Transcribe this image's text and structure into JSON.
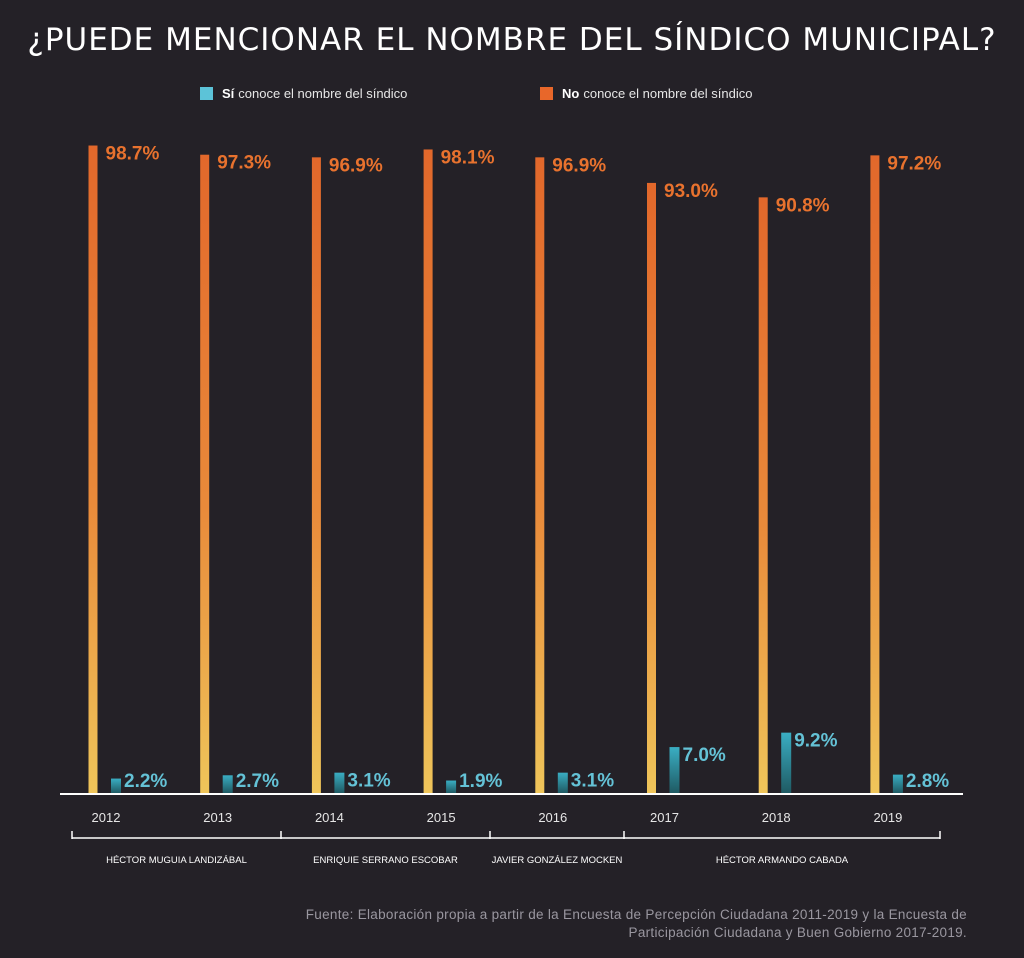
{
  "colors": {
    "background": "#242127",
    "no_top": "#e2682b",
    "no_bottom": "#efc55a",
    "si_top": "#3aaec3",
    "si_bottom": "#1f5a63",
    "si_label": "#64c2d6",
    "no_label": "#e8722e",
    "axis": "#ffffff"
  },
  "legend": {
    "si": {
      "bold": "Sí",
      "text": "conoce el nombre del síndico",
      "color": "#5cc3d8"
    },
    "no": {
      "bold": "No",
      "text": "conoce el nombre del síndico",
      "color": "#e8672a"
    }
  },
  "chart_data": {
    "type": "bar",
    "title": "¿PUEDE MENCIONAR EL NOMBRE DEL SÍNDICO MUNICIPAL?",
    "categories": [
      "2012",
      "2013",
      "2014",
      "2015",
      "2016",
      "2017",
      "2018",
      "2019"
    ],
    "series": [
      {
        "name": "Sí conoce el nombre del síndico",
        "values": [
          2.2,
          2.7,
          3.1,
          1.9,
          3.1,
          7.0,
          9.2,
          2.8
        ],
        "labels": [
          "2.2%",
          "2.7%",
          "3.1%",
          "1.9%",
          "3.1%",
          "7.0%",
          "9.2%",
          "2.8%"
        ]
      },
      {
        "name": "No conoce el nombre del síndico",
        "values": [
          98.7,
          97.3,
          96.9,
          98.1,
          96.9,
          93.0,
          90.8,
          97.2
        ],
        "labels": [
          "98.7%",
          "97.3%",
          "96.9%",
          "98.1%",
          "96.9%",
          "93.0%",
          "90.8%",
          "97.2%"
        ]
      }
    ],
    "ylim": [
      0,
      100
    ],
    "grid": false,
    "legend_position": "top",
    "periods": [
      {
        "name": "HÉCTOR MUGUIA LANDIZÁBAL",
        "start": "2012",
        "end": "2013"
      },
      {
        "name": "ENRIQUIE SERRANO ESCOBAR",
        "start": "2014",
        "end": "2015"
      },
      {
        "name": "JAVIER GONZÁLEZ MOCKEN",
        "start": "2016",
        "end": "2016"
      },
      {
        "name": "HÉCTOR ARMANDO CABADA",
        "start": "2017",
        "end": "2019"
      }
    ]
  },
  "source": {
    "line1": "Fuente: Elaboración propia a partir de la Encuesta de Percepción Ciudadana 2011-2019 y la Encuesta de",
    "line2": "Participación Ciudadana y Buen Gobierno 2017-2019."
  }
}
